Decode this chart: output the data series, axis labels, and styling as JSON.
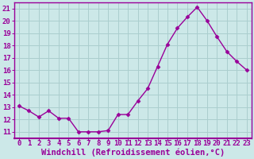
{
  "x": [
    0,
    1,
    2,
    3,
    4,
    5,
    6,
    7,
    8,
    9,
    10,
    11,
    12,
    13,
    14,
    15,
    16,
    17,
    18,
    19,
    20,
    21,
    22,
    23
  ],
  "y": [
    13.1,
    12.7,
    12.2,
    12.7,
    12.1,
    12.1,
    11.0,
    11.0,
    11.0,
    11.1,
    12.4,
    12.4,
    13.5,
    14.5,
    16.3,
    18.1,
    19.4,
    20.3,
    21.1,
    20.0,
    18.7,
    17.5,
    16.7,
    16.0
  ],
  "line_color": "#990099",
  "marker": "D",
  "markersize": 2.5,
  "bg_color": "#cce8e8",
  "grid_color": "#aacece",
  "xlabel": "Windchill (Refroidissement éolien,°C)",
  "xlabel_color": "#990099",
  "xlabel_fontsize": 7.5,
  "ylabel_ticks": [
    11,
    12,
    13,
    14,
    15,
    16,
    17,
    18,
    19,
    20,
    21
  ],
  "xlim": [
    -0.5,
    23.5
  ],
  "ylim": [
    10.5,
    21.5
  ],
  "tick_fontsize": 6.5,
  "tick_color": "#990099",
  "axis_color": "#990099",
  "linewidth": 1.0,
  "spine_color": "#990099",
  "xtick_labels": [
    "0",
    "1",
    "2",
    "3",
    "4",
    "5",
    "6",
    "7",
    "8",
    "9",
    "10",
    "11",
    "12",
    "13",
    "14",
    "15",
    "16",
    "17",
    "18",
    "19",
    "20",
    "21",
    "22",
    "23"
  ]
}
